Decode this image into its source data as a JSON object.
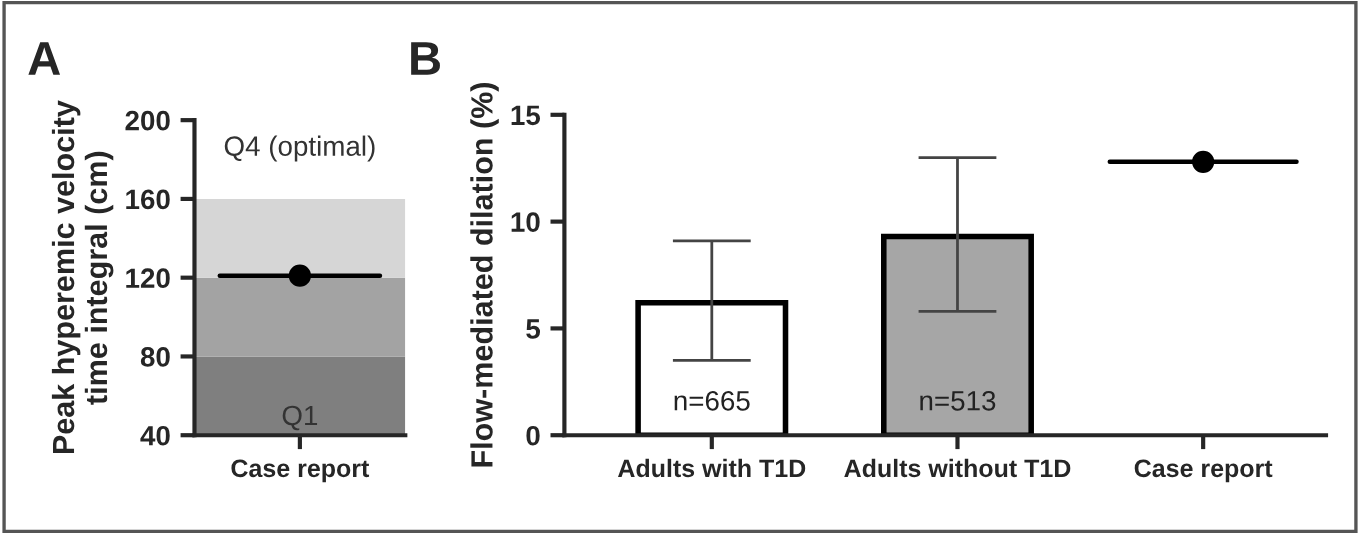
{
  "chart_data": [
    {
      "type": "scatter",
      "ylabel": "Peak hyperemic velocity\ntime integral (cm)",
      "categories": [
        "Case report"
      ],
      "series": [
        {
          "color": "#000000",
          "values": [
            121
          ]
        }
      ],
      "ylim": [
        40,
        200
      ],
      "yticks": [
        40,
        80,
        120,
        160,
        200
      ],
      "marker": "circle",
      "bands": [
        {
          "axis": "y",
          "from": 40,
          "to": 80,
          "label": "Q1",
          "color": "#7f7f7f"
        },
        {
          "axis": "y",
          "from": 80,
          "to": 120,
          "color": "#a3a3a3"
        },
        {
          "axis": "y",
          "from": 120,
          "to": 160,
          "color": "#d6d6d6"
        }
      ],
      "annotations": [
        "A",
        "Q4 (optimal)"
      ]
    },
    {
      "type": "bar",
      "ylabel": "Flow-mediated dilation (%)",
      "categories": [
        "Adults with T1D",
        "Adults without T1D",
        "Case report"
      ],
      "series": [
        {
          "color": "#ffffff",
          "values": [
            6.2,
            9.3,
            null
          ],
          "errors": [
            [
              3.5,
              9.1
            ],
            [
              5.8,
              13.0
            ],
            null
          ],
          "colors": [
            "#ffffff",
            "#a6a6a6",
            "#ffffff"
          ]
        },
        {
          "type": "scatter",
          "color": "#000000",
          "x": [
            "Case report"
          ],
          "values": [
            12.8
          ]
        }
      ],
      "ylim": [
        0,
        15
      ],
      "yticks": [
        0,
        5,
        10,
        15
      ],
      "marker": "circle",
      "annotations": [
        "B",
        "n=665",
        "n=513"
      ]
    }
  ]
}
